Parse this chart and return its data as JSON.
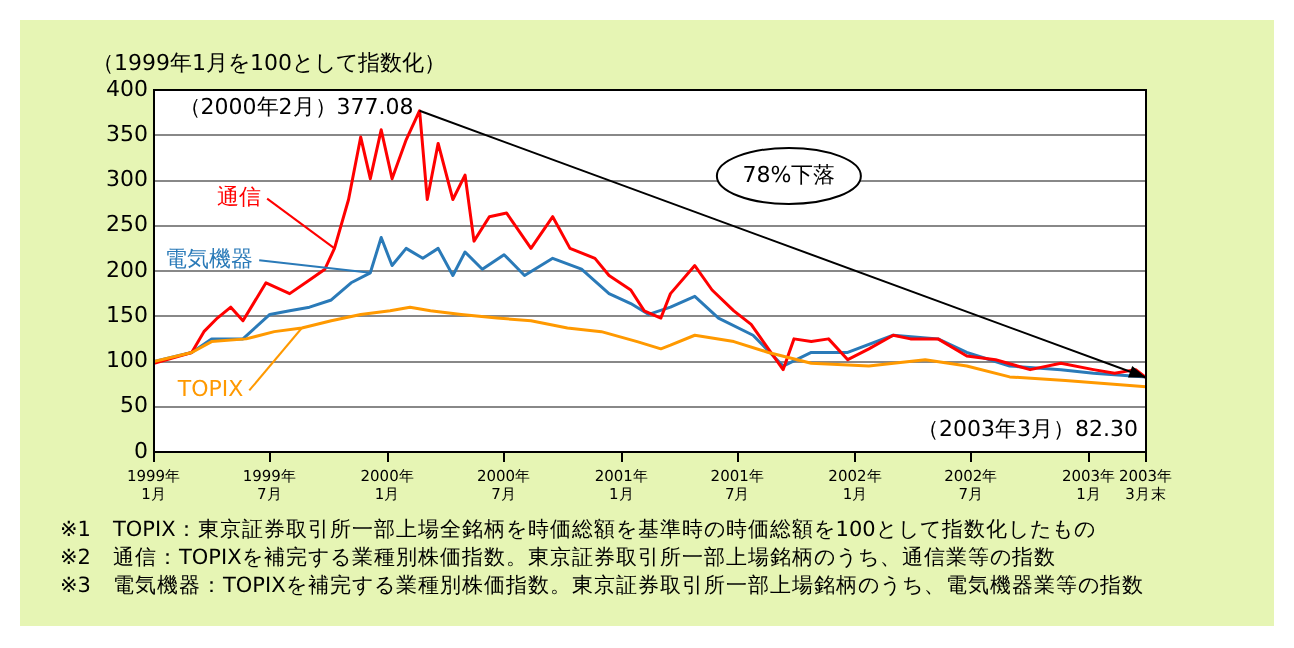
{
  "chart_data": {
    "type": "line",
    "ylabel": "（1999年1月を100として指数化）",
    "xlim": [
      "1999-01-01",
      "2003-03-31"
    ],
    "xticks": [
      {
        "value": "1999-01-01",
        "label": "1999年\n1月"
      },
      {
        "value": "1999-07-01",
        "label": "1999年\n7月"
      },
      {
        "value": "2000-01-01",
        "label": "2000年\n1月"
      },
      {
        "value": "2000-07-01",
        "label": "2000年\n7月"
      },
      {
        "value": "2001-01-01",
        "label": "2001年\n1月"
      },
      {
        "value": "2001-07-01",
        "label": "2001年\n7月"
      },
      {
        "value": "2002-01-01",
        "label": "2002年\n1月"
      },
      {
        "value": "2002-07-01",
        "label": "2002年\n7月"
      },
      {
        "value": "2003-01-01",
        "label": "2003年\n1月"
      },
      {
        "value": "2003-03-31",
        "label": "2003年\n3月末"
      }
    ],
    "ylim": [
      0,
      400
    ],
    "yticks": [
      0,
      50,
      100,
      150,
      200,
      250,
      300,
      350,
      400
    ],
    "grid": "y",
    "legend": false,
    "marker": "none",
    "line_style": "solid",
    "series": [
      {
        "name": "TOPIX",
        "color": "#ff9900",
        "x": [
          "1999-01-01",
          "1999-03-01",
          "1999-04-01",
          "1999-05-25",
          "1999-07-08",
          "1999-08-20",
          "1999-10-05",
          "1999-11-20",
          "2000-01-05",
          "2000-02-05",
          "2000-03-08",
          "2000-04-25",
          "2000-06-20",
          "2000-08-12",
          "2000-10-08",
          "2000-11-30",
          "2001-01-25",
          "2001-03-03",
          "2001-03-18",
          "2001-04-25",
          "2001-06-25",
          "2001-08-18",
          "2001-10-24",
          "2002-01-22",
          "2002-04-20",
          "2002-06-24",
          "2002-08-30",
          "2002-11-25",
          "2003-03-31"
        ],
        "values": [
          100,
          110,
          122,
          125,
          133,
          137,
          145,
          152,
          156,
          160,
          156,
          152,
          148,
          145,
          137,
          133,
          122,
          114,
          118,
          129,
          122,
          110,
          98,
          95,
          102,
          95,
          83,
          79,
          72
        ]
      },
      {
        "name": "通信",
        "color": "#ff0000",
        "x": [
          "1999-01-01",
          "1999-03-01",
          "1999-03-20",
          "1999-04-10",
          "1999-05-01",
          "1999-05-20",
          "1999-06-25",
          "1999-08-01",
          "1999-09-01",
          "1999-09-25",
          "1999-10-10",
          "1999-11-01",
          "1999-11-20",
          "1999-12-05",
          "1999-12-22",
          "2000-01-08",
          "2000-01-30",
          "2000-02-20",
          "2000-03-03",
          "2000-03-20",
          "2000-04-12",
          "2000-05-01",
          "2000-05-15",
          "2000-06-08",
          "2000-07-05",
          "2000-08-12",
          "2000-09-15",
          "2000-10-12",
          "2000-11-20",
          "2000-12-12",
          "2001-01-15",
          "2001-02-05",
          "2001-03-03",
          "2001-03-18",
          "2001-04-25",
          "2001-05-22",
          "2001-06-25",
          "2001-07-22",
          "2001-08-18",
          "2001-09-10",
          "2001-09-27",
          "2001-10-24",
          "2001-11-20",
          "2001-12-20",
          "2002-01-22",
          "2002-03-01",
          "2002-03-28",
          "2002-05-10",
          "2002-06-24",
          "2002-08-08",
          "2002-10-01",
          "2002-11-18",
          "2003-01-08",
          "2003-02-10",
          "2003-03-15",
          "2003-03-31"
        ],
        "values": [
          98,
          110,
          133,
          148,
          160,
          145,
          187,
          175,
          190,
          202,
          225,
          279,
          348,
          302,
          356,
          302,
          345,
          377.08,
          279,
          341,
          279,
          306,
          233,
          260,
          264,
          225,
          260,
          225,
          214,
          195,
          179,
          156,
          148,
          175,
          206,
          179,
          156,
          141,
          114,
          91,
          125,
          122,
          125,
          102,
          114,
          129,
          125,
          125,
          106,
          102,
          91,
          98,
          91,
          87,
          91,
          82.3
        ]
      },
      {
        "name": "電気機器",
        "color": "#2a7ab8",
        "x": [
          "1999-01-01",
          "1999-03-01",
          "1999-04-01",
          "1999-05-20",
          "1999-07-01",
          "1999-08-01",
          "1999-09-01",
          "1999-10-05",
          "1999-11-05",
          "1999-12-05",
          "1999-12-22",
          "2000-01-08",
          "2000-01-30",
          "2000-02-25",
          "2000-03-20",
          "2000-04-12",
          "2000-05-01",
          "2000-05-28",
          "2000-07-01",
          "2000-08-02",
          "2000-09-15",
          "2000-10-30",
          "2000-12-12",
          "2001-01-15",
          "2001-02-12",
          "2001-03-18",
          "2001-04-25",
          "2001-06-01",
          "2001-07-25",
          "2001-09-10",
          "2001-10-24",
          "2001-12-20",
          "2002-03-01",
          "2002-05-10",
          "2002-06-24",
          "2002-08-30",
          "2002-11-18",
          "2003-01-08",
          "2003-03-31"
        ],
        "values": [
          100,
          110,
          125,
          125,
          152,
          156,
          160,
          168,
          187,
          198,
          237,
          206,
          225,
          214,
          225,
          195,
          221,
          202,
          218,
          195,
          214,
          202,
          175,
          164,
          152,
          160,
          172,
          148,
          129,
          95,
          110,
          110,
          129,
          125,
          110,
          95,
          91,
          87,
          83
        ]
      }
    ],
    "annotations": [
      {
        "text": "（2000年2月）377.08",
        "x": "2000-02-20",
        "y": 377.08
      },
      {
        "text": "（2003年3月）82.30",
        "x": "2003-03-31",
        "y": 82.3
      },
      "78%下落",
      "※1　TOPIX：東京証券取引所一部上場全銘柄を時価総額を基準時の時価総額を100として指数化したもの",
      "※2　通信：TOPIXを補完する業種別株価指数。東京証券取引所一部上場銘柄のうち、通信業等の指数",
      "※3　電気機器：TOPIXを補完する業種別株価指数。東京証券取引所一部上場銘柄のうち、電気機器業等の指数"
    ]
  }
}
